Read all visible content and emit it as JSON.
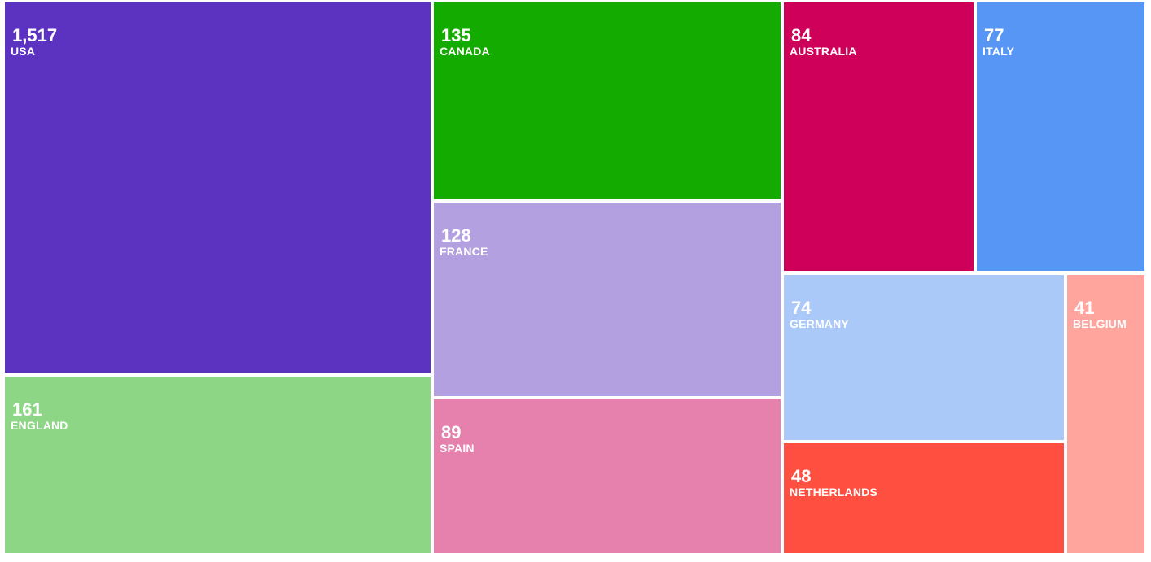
{
  "chart_data": {
    "type": "treemap",
    "title": "",
    "items": [
      {
        "label": "USA",
        "value": 1517,
        "display": "1,517",
        "color": "#5c33c1"
      },
      {
        "label": "ENGLAND",
        "value": 161,
        "display": "161",
        "color": "#8cd686"
      },
      {
        "label": "CANADA",
        "value": 135,
        "display": "135",
        "color": "#14ab00"
      },
      {
        "label": "FRANCE",
        "value": 128,
        "display": "128",
        "color": "#b3a0e0"
      },
      {
        "label": "SPAIN",
        "value": 89,
        "display": "89",
        "color": "#e680ac"
      },
      {
        "label": "AUSTRALIA",
        "value": 84,
        "display": "84",
        "color": "#cf0059"
      },
      {
        "label": "ITALY",
        "value": 77,
        "display": "77",
        "color": "#5896f5"
      },
      {
        "label": "GERMANY",
        "value": 74,
        "display": "74",
        "color": "#aac8f8"
      },
      {
        "label": "NETHERLANDS",
        "value": 48,
        "display": "48",
        "color": "#ff4f40"
      },
      {
        "label": "BELGIUM",
        "value": 41,
        "display": "41",
        "color": "#ffa59e"
      }
    ]
  }
}
